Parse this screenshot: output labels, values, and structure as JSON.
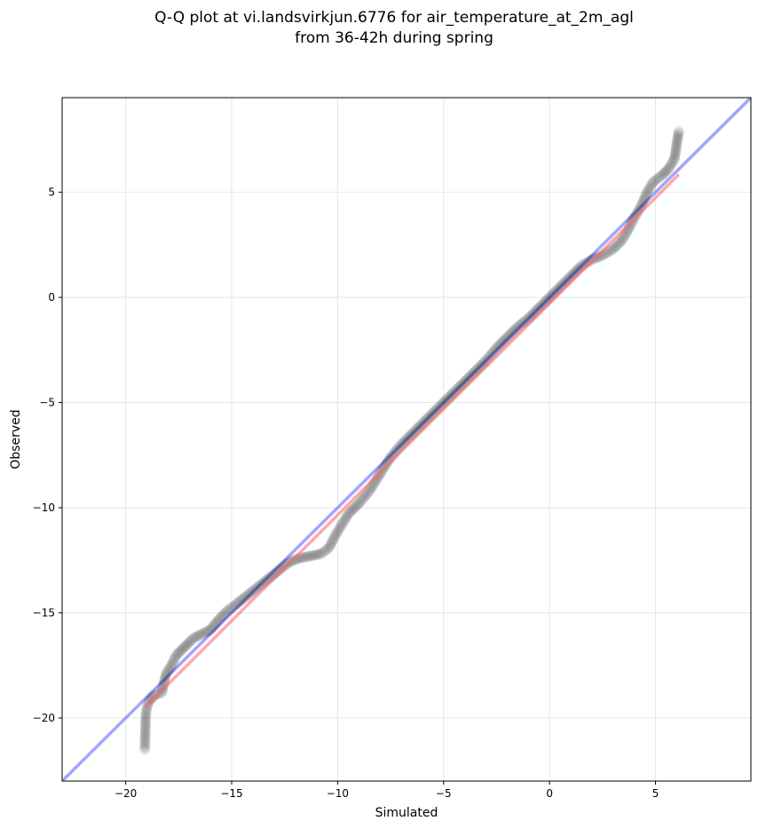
{
  "chart_data": {
    "type": "scatter",
    "title_lines": [
      "Q-Q plot at vi.landsvirkjun.6776 for air_temperature_at_2m_agl",
      "from 36-42h during spring"
    ],
    "xlabel": "Simulated",
    "ylabel": "Observed",
    "xlim": [
      -23,
      9.5
    ],
    "ylim": [
      -23,
      9.5
    ],
    "grid": true,
    "xticks": [
      -20,
      -15,
      -10,
      -5,
      0,
      5
    ],
    "yticks": [
      -20,
      -15,
      -10,
      -5,
      0,
      5
    ],
    "xtick_labels": [
      "−20",
      "−15",
      "−10",
      "−5",
      "0",
      "5"
    ],
    "ytick_labels": [
      "−20",
      "−15",
      "−10",
      "−5",
      "0",
      "5"
    ],
    "quantile_curve": [
      [
        -19.1,
        -21.5
      ],
      [
        -19.05,
        -19.8
      ],
      [
        -19.0,
        -19.5
      ],
      [
        -18.9,
        -19.2
      ],
      [
        -18.6,
        -18.9
      ],
      [
        -18.3,
        -18.8
      ],
      [
        -18.1,
        -17.9
      ],
      [
        -17.9,
        -17.6
      ],
      [
        -17.6,
        -17.0
      ],
      [
        -17.3,
        -16.7
      ],
      [
        -17.0,
        -16.4
      ],
      [
        -16.8,
        -16.2
      ],
      [
        -16.4,
        -16.0
      ],
      [
        -16.0,
        -15.8
      ],
      [
        -15.6,
        -15.3
      ],
      [
        -15.2,
        -14.9
      ],
      [
        -14.8,
        -14.6
      ],
      [
        -14.3,
        -14.2
      ],
      [
        -13.8,
        -13.8
      ],
      [
        -13.3,
        -13.4
      ],
      [
        -12.8,
        -13.0
      ],
      [
        -12.3,
        -12.6
      ],
      [
        -11.8,
        -12.4
      ],
      [
        -11.3,
        -12.3
      ],
      [
        -10.8,
        -12.2
      ],
      [
        -10.4,
        -11.9
      ],
      [
        -10.1,
        -11.3
      ],
      [
        -9.8,
        -10.8
      ],
      [
        -9.5,
        -10.3
      ],
      [
        -9.0,
        -9.8
      ],
      [
        -8.5,
        -9.2
      ],
      [
        -8.0,
        -8.4
      ],
      [
        -7.5,
        -7.6
      ],
      [
        -7.0,
        -7.0
      ],
      [
        -6.5,
        -6.5
      ],
      [
        -6.0,
        -6.0
      ],
      [
        -5.5,
        -5.5
      ],
      [
        -5.0,
        -5.0
      ],
      [
        -4.5,
        -4.5
      ],
      [
        -4.0,
        -4.0
      ],
      [
        -3.5,
        -3.5
      ],
      [
        -3.0,
        -3.0
      ],
      [
        -2.5,
        -2.4
      ],
      [
        -2.0,
        -1.9
      ],
      [
        -1.5,
        -1.4
      ],
      [
        -1.0,
        -1.0
      ],
      [
        -0.5,
        -0.5
      ],
      [
        0.0,
        0.0
      ],
      [
        0.5,
        0.5
      ],
      [
        1.0,
        1.0
      ],
      [
        1.5,
        1.5
      ],
      [
        2.0,
        1.8
      ],
      [
        2.5,
        2.0
      ],
      [
        3.0,
        2.3
      ],
      [
        3.4,
        2.7
      ],
      [
        3.7,
        3.2
      ],
      [
        4.0,
        3.8
      ],
      [
        4.3,
        4.3
      ],
      [
        4.6,
        5.0
      ],
      [
        4.9,
        5.5
      ],
      [
        5.3,
        5.8
      ],
      [
        5.6,
        6.1
      ],
      [
        5.9,
        6.6
      ],
      [
        6.0,
        7.3
      ],
      [
        6.1,
        7.9
      ]
    ],
    "reference_line": {
      "label": "y = x",
      "from": [
        -23,
        -23
      ],
      "to": [
        9.5,
        9.5
      ]
    },
    "fit_line": {
      "from": [
        -19.1,
        -19.5
      ],
      "to": [
        6.1,
        5.85
      ]
    }
  },
  "colors": {
    "points": "#000000",
    "reference_line": "#4a4aff",
    "fit_line": "#ff6464",
    "grid": "#e6e6e6",
    "axes": "#000000"
  }
}
